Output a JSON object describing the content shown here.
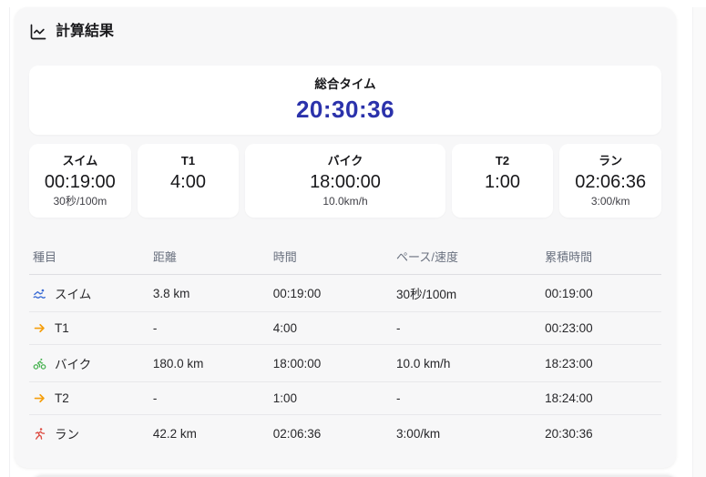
{
  "header": {
    "title": "計算結果",
    "icon": "chart-line-icon"
  },
  "total": {
    "label": "総合タイム",
    "value": "20:30:36",
    "value_color": "#2b32ab"
  },
  "stats": [
    {
      "label": "スイム",
      "value": "00:19:00",
      "sub": "30秒/100m",
      "wide": false
    },
    {
      "label": "T1",
      "value": "4:00",
      "sub": "",
      "wide": false
    },
    {
      "label": "バイク",
      "value": "18:00:00",
      "sub": "10.0km/h",
      "wide": true
    },
    {
      "label": "T2",
      "value": "1:00",
      "sub": "",
      "wide": false
    },
    {
      "label": "ラン",
      "value": "02:06:36",
      "sub": "3:00/km",
      "wide": false
    }
  ],
  "table": {
    "columns": [
      "種目",
      "距離",
      "時間",
      "ペース/速度",
      "累積時間"
    ],
    "rows": [
      {
        "icon": "swim-icon",
        "icon_color": "#3b6cd4",
        "label": "スイム",
        "distance": "3.8 km",
        "time": "00:19:00",
        "pace": "30秒/100m",
        "cumulative": "00:19:00"
      },
      {
        "icon": "transition-arrow-icon",
        "icon_color": "#f59e0b",
        "label": "T1",
        "distance": "-",
        "time": "4:00",
        "pace": "-",
        "cumulative": "00:23:00"
      },
      {
        "icon": "bike-icon",
        "icon_color": "#45b14e",
        "label": "バイク",
        "distance": "180.0 km",
        "time": "18:00:00",
        "pace": "10.0 km/h",
        "cumulative": "18:23:00"
      },
      {
        "icon": "transition-arrow-icon",
        "icon_color": "#f59e0b",
        "label": "T2",
        "distance": "-",
        "time": "1:00",
        "pace": "-",
        "cumulative": "18:24:00"
      },
      {
        "icon": "run-icon",
        "icon_color": "#dd4b41",
        "label": "ラン",
        "distance": "42.2 km",
        "time": "02:06:36",
        "pace": "3:00/km",
        "cumulative": "20:30:36"
      }
    ]
  }
}
